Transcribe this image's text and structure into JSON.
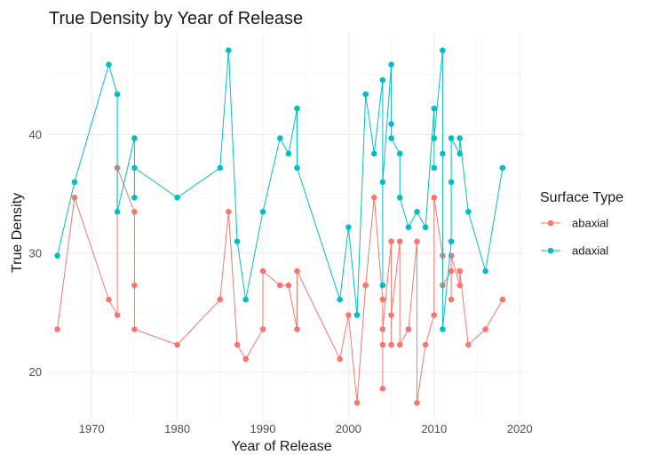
{
  "chart_data": {
    "type": "line",
    "title": "True Density by Year of Release",
    "xlabel": "Year of Release",
    "ylabel": "True Density",
    "xlim": [
      1965,
      2020.5
    ],
    "ylim": [
      16.0,
      48.5
    ],
    "x_ticks": [
      1970,
      1980,
      1990,
      2000,
      2010,
      2020
    ],
    "y_ticks": [
      20,
      30,
      40
    ],
    "grid": true,
    "legend": {
      "title": "Surface Type",
      "position": "right"
    },
    "series": [
      {
        "name": "abaxial",
        "color": "#F8766D",
        "points": [
          [
            1966,
            23.6
          ],
          [
            1968,
            34.7
          ],
          [
            1972,
            26.1
          ],
          [
            1973,
            24.8
          ],
          [
            1973,
            37.2
          ],
          [
            1975,
            33.5
          ],
          [
            1975,
            27.3
          ],
          [
            1975,
            23.6
          ],
          [
            1980,
            22.3
          ],
          [
            1985,
            26.1
          ],
          [
            1986,
            33.5
          ],
          [
            1987,
            22.3
          ],
          [
            1988,
            21.1
          ],
          [
            1990,
            23.6
          ],
          [
            1990,
            28.5
          ],
          [
            1992,
            27.3
          ],
          [
            1993,
            27.3
          ],
          [
            1994,
            23.6
          ],
          [
            1994,
            28.5
          ],
          [
            1999,
            21.1
          ],
          [
            2000,
            24.8
          ],
          [
            2001,
            17.4
          ],
          [
            2002,
            27.3
          ],
          [
            2003,
            34.7
          ],
          [
            2004,
            26.1
          ],
          [
            2004,
            22.3
          ],
          [
            2004,
            18.6
          ],
          [
            2004,
            23.6
          ],
          [
            2005,
            31.0
          ],
          [
            2005,
            22.3
          ],
          [
            2005,
            24.8
          ],
          [
            2006,
            31.0
          ],
          [
            2006,
            22.3
          ],
          [
            2007,
            23.6
          ],
          [
            2008,
            31.0
          ],
          [
            2008,
            17.4
          ],
          [
            2009,
            22.3
          ],
          [
            2010,
            24.8
          ],
          [
            2010,
            34.7
          ],
          [
            2011,
            29.8
          ],
          [
            2011,
            27.3
          ],
          [
            2012,
            28.5
          ],
          [
            2012,
            26.1
          ],
          [
            2012,
            29.8
          ],
          [
            2013,
            27.3
          ],
          [
            2013,
            28.5
          ],
          [
            2014,
            22.3
          ],
          [
            2016,
            23.6
          ],
          [
            2018,
            26.1
          ]
        ]
      },
      {
        "name": "adaxial",
        "color": "#00BFC4",
        "points": [
          [
            1966,
            29.8
          ],
          [
            1968,
            36.0
          ],
          [
            1972,
            45.9
          ],
          [
            1973,
            43.4
          ],
          [
            1973,
            33.5
          ],
          [
            1975,
            39.7
          ],
          [
            1975,
            34.7
          ],
          [
            1975,
            37.2
          ],
          [
            1980,
            34.7
          ],
          [
            1985,
            37.2
          ],
          [
            1986,
            47.1
          ],
          [
            1987,
            31.0
          ],
          [
            1988,
            26.1
          ],
          [
            1990,
            33.5
          ],
          [
            1992,
            39.7
          ],
          [
            1993,
            38.4
          ],
          [
            1994,
            42.2
          ],
          [
            1994,
            37.2
          ],
          [
            1999,
            26.1
          ],
          [
            2000,
            32.2
          ],
          [
            2001,
            24.8
          ],
          [
            2002,
            43.4
          ],
          [
            2003,
            38.4
          ],
          [
            2004,
            44.6
          ],
          [
            2004,
            27.3
          ],
          [
            2004,
            36.0
          ],
          [
            2005,
            45.9
          ],
          [
            2005,
            40.9
          ],
          [
            2005,
            39.7
          ],
          [
            2006,
            38.4
          ],
          [
            2006,
            34.7
          ],
          [
            2007,
            32.2
          ],
          [
            2008,
            33.5
          ],
          [
            2009,
            32.2
          ],
          [
            2010,
            42.2
          ],
          [
            2010,
            37.2
          ],
          [
            2010,
            39.7
          ],
          [
            2011,
            47.1
          ],
          [
            2011,
            38.4
          ],
          [
            2011,
            23.6
          ],
          [
            2012,
            31.0
          ],
          [
            2012,
            36.0
          ],
          [
            2012,
            39.7
          ],
          [
            2013,
            38.4
          ],
          [
            2013,
            39.7
          ],
          [
            2014,
            33.5
          ],
          [
            2016,
            28.5
          ],
          [
            2018,
            37.2
          ]
        ]
      }
    ]
  }
}
